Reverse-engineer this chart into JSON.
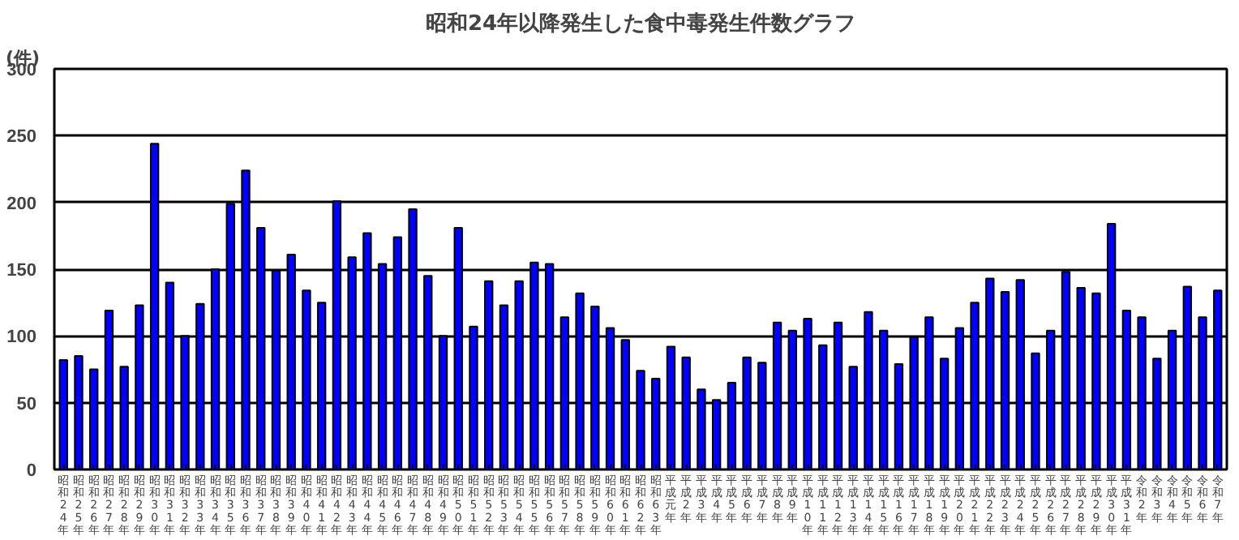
{
  "chart_data": {
    "type": "bar",
    "title": "昭和24年以降発生した食中毒発生件数グラフ",
    "ylabel": "(件)",
    "categories": [
      "昭和24年",
      "昭和25年",
      "昭和26年",
      "昭和27年",
      "昭和28年",
      "昭和29年",
      "昭和30年",
      "昭和31年",
      "昭和32年",
      "昭和33年",
      "昭和34年",
      "昭和35年",
      "昭和36年",
      "昭和37年",
      "昭和38年",
      "昭和39年",
      "昭和40年",
      "昭和41年",
      "昭和42年",
      "昭和43年",
      "昭和44年",
      "昭和45年",
      "昭和46年",
      "昭和47年",
      "昭和48年",
      "昭和49年",
      "昭和50年",
      "昭和51年",
      "昭和52年",
      "昭和53年",
      "昭和54年",
      "昭和55年",
      "昭和56年",
      "昭和57年",
      "昭和58年",
      "昭和59年",
      "昭和60年",
      "昭和61年",
      "昭和62年",
      "昭和63年",
      "平成元年",
      "平成2年",
      "平成3年",
      "平成4年",
      "平成5年",
      "平成6年",
      "平成7年",
      "平成8年",
      "平成9年",
      "平成10年",
      "平成11年",
      "平成12年",
      "平成13年",
      "平成14年",
      "平成15年",
      "平成16年",
      "平成17年",
      "平成18年",
      "平成19年",
      "平成20年",
      "平成21年",
      "平成22年",
      "平成23年",
      "平成24年",
      "平成25年",
      "平成26年",
      "平成27年",
      "平成28年",
      "平成29年",
      "平成30年",
      "平成31年",
      "令和2年",
      "令和3年",
      "令和4年",
      "令和5年",
      "令和6年",
      "令和7年"
    ],
    "values": [
      82,
      85,
      75,
      119,
      77,
      123,
      244,
      140,
      100,
      124,
      150,
      199,
      224,
      181,
      149,
      161,
      134,
      125,
      201,
      159,
      177,
      154,
      174,
      195,
      145,
      100,
      181,
      107,
      141,
      123,
      141,
      155,
      154,
      114,
      132,
      122,
      106,
      97,
      74,
      68,
      92,
      84,
      60,
      52,
      65,
      84,
      80,
      110,
      104,
      113,
      93,
      110,
      77,
      118,
      104,
      79,
      99,
      114,
      83,
      106,
      125,
      143,
      133,
      142,
      87,
      104,
      148,
      136,
      132,
      184,
      119,
      114,
      83,
      104,
      137,
      114,
      134
    ],
    "color": "#0000ff",
    "ylim": [
      0,
      300
    ],
    "yticks": [
      0,
      50,
      100,
      150,
      200,
      250,
      300
    ],
    "grid": "y"
  }
}
